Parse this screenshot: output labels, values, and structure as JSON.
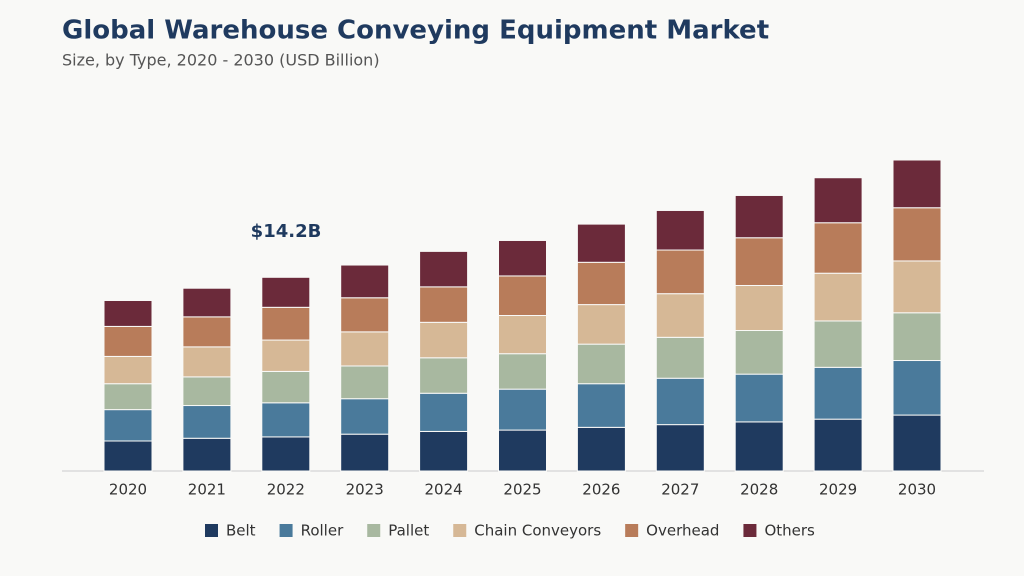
{
  "chart_data": {
    "type": "stacked-bar",
    "title": "Global Warehouse Conveying Equipment Market",
    "subtitle": "Size, by Type, 2020 - 2030 (USD Billion)",
    "annotation": "$14.2B",
    "categories": [
      "2020",
      "2021",
      "2022",
      "2023",
      "2024",
      "2025",
      "2026",
      "2027",
      "2028",
      "2029",
      "2030"
    ],
    "series": [
      {
        "name": "Belt",
        "color": "#1f3a5f",
        "values": [
          2.2,
          2.4,
          2.5,
          2.7,
          2.9,
          3.0,
          3.2,
          3.4,
          3.6,
          3.8,
          4.1
        ]
      },
      {
        "name": "Roller",
        "color": "#4a7a9b",
        "values": [
          2.3,
          2.4,
          2.5,
          2.6,
          2.8,
          3.0,
          3.2,
          3.4,
          3.5,
          3.8,
          4.0
        ]
      },
      {
        "name": "Pallet",
        "color": "#a8b8a0",
        "values": [
          1.9,
          2.1,
          2.3,
          2.4,
          2.6,
          2.6,
          2.9,
          3.0,
          3.2,
          3.4,
          3.5
        ]
      },
      {
        "name": "Chain Conveyors",
        "color": "#d6b896",
        "values": [
          2.0,
          2.2,
          2.3,
          2.5,
          2.6,
          2.8,
          2.9,
          3.2,
          3.3,
          3.5,
          3.8
        ]
      },
      {
        "name": "Overhead",
        "color": "#b87c5a",
        "values": [
          2.2,
          2.2,
          2.4,
          2.5,
          2.6,
          2.9,
          3.1,
          3.2,
          3.5,
          3.7,
          3.9
        ]
      },
      {
        "name": "Others",
        "color": "#6b2a3a",
        "values": [
          1.9,
          2.1,
          2.2,
          2.4,
          2.6,
          2.6,
          2.8,
          2.9,
          3.1,
          3.3,
          3.5
        ]
      }
    ]
  }
}
